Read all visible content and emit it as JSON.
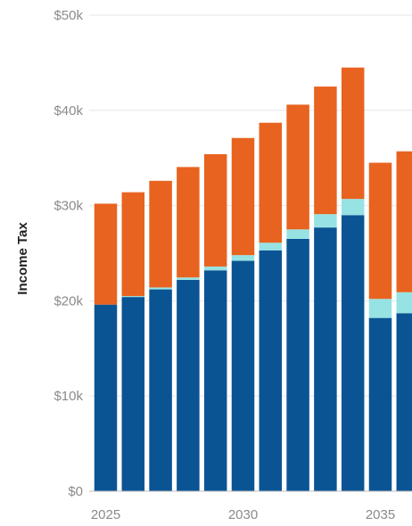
{
  "chart_data": {
    "type": "bar",
    "stacked": true,
    "ylabel": "Income Tax",
    "ylim": [
      0,
      50000
    ],
    "yticks": [
      0,
      10000,
      20000,
      30000,
      40000,
      50000
    ],
    "ytick_labels": [
      "$0",
      "$10k",
      "$20k",
      "$30k",
      "$40k",
      "$50k"
    ],
    "xtick_labels": [
      {
        "value": 2025,
        "label": "2025"
      },
      {
        "value": 2030,
        "label": "2030"
      },
      {
        "value": 2035,
        "label": "2035"
      }
    ],
    "categories": [
      2025,
      2026,
      2027,
      2028,
      2029,
      2030,
      2031,
      2032,
      2033,
      2034,
      2035,
      2036
    ],
    "grid": true,
    "series": [
      {
        "color": "#0a5494",
        "values": [
          19600,
          20400,
          21200,
          22200,
          23200,
          24200,
          25300,
          26500,
          27700,
          29000,
          18200,
          18700
        ]
      },
      {
        "color": "#97e3e4",
        "values": [
          0,
          100,
          200,
          250,
          400,
          600,
          800,
          1000,
          1400,
          1700,
          2000,
          2200
        ]
      },
      {
        "color": "#e8631f",
        "values": [
          10600,
          10900,
          11200,
          11600,
          11800,
          12300,
          12600,
          13100,
          13400,
          13800,
          14300,
          14800
        ]
      }
    ]
  }
}
